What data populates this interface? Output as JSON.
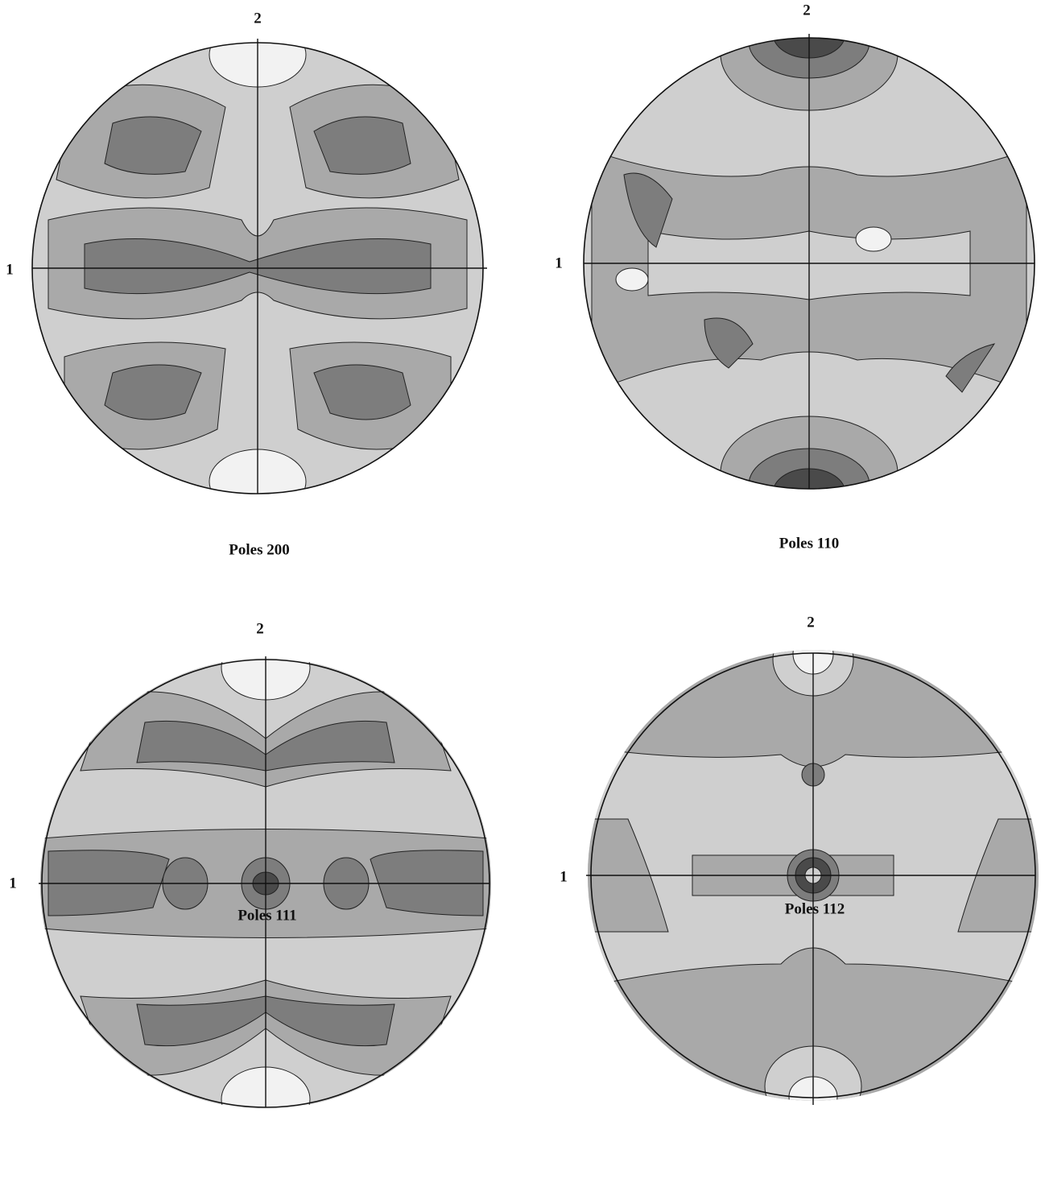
{
  "panels": [
    {
      "axis_top": "2",
      "axis_left": "1",
      "caption": "Poles 200"
    },
    {
      "axis_top": "2",
      "axis_left": "1",
      "caption": "Poles 110"
    },
    {
      "axis_top": "2",
      "axis_left": "1",
      "caption": "Poles 111"
    },
    {
      "axis_top": "2",
      "axis_left": "1",
      "caption": "Poles 112"
    }
  ]
}
